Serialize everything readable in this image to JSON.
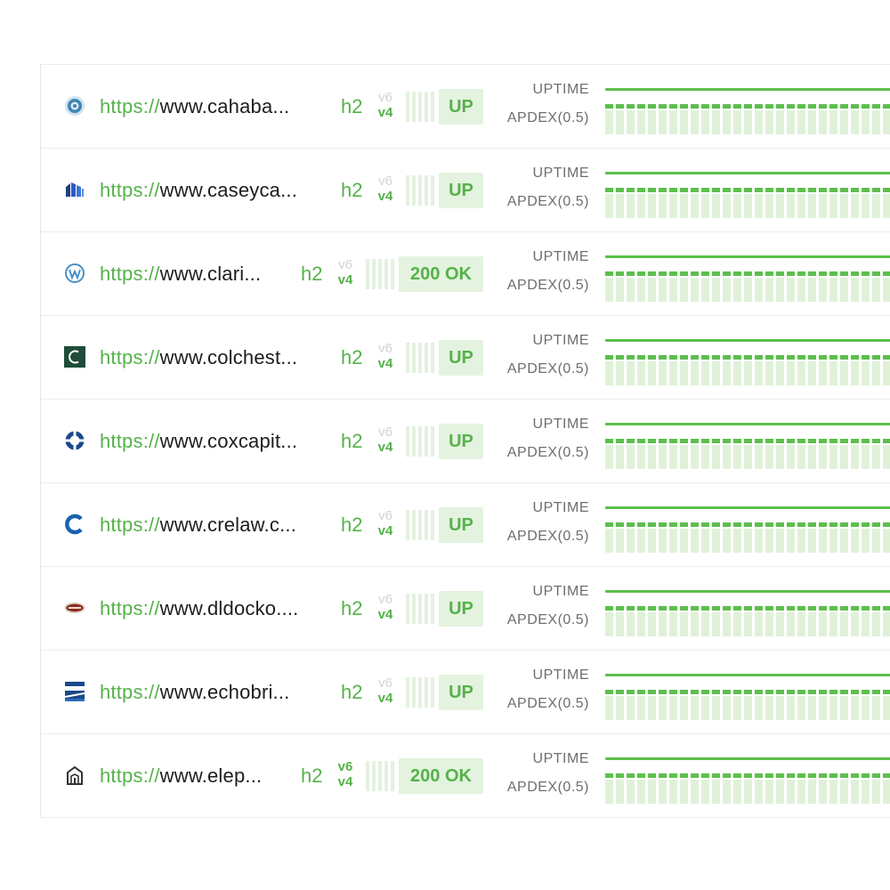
{
  "labels": {
    "uptime": "UPTIME",
    "apdex": "APDEX(0.5)"
  },
  "colors": {
    "accent": "#55b24a",
    "status_bg": "#e4f3df",
    "uptime_line": "#5cbf4c"
  },
  "monitors": [
    {
      "icon": "cahaba-logo-icon",
      "scheme": "https://",
      "host": "www.cahaba...",
      "protocol": "h2",
      "v6": "v6",
      "v4": "v4",
      "v6_active": false,
      "status": "UP"
    },
    {
      "icon": "caseyca-logo-icon",
      "scheme": "https://",
      "host": "www.caseyca...",
      "protocol": "h2",
      "v6": "v6",
      "v4": "v4",
      "v6_active": false,
      "status": "UP"
    },
    {
      "icon": "clari-logo-icon",
      "scheme": "https://",
      "host": "www.clari...",
      "protocol": "h2",
      "v6": "v6",
      "v4": "v4",
      "v6_active": false,
      "status": "200 OK"
    },
    {
      "icon": "colchest-logo-icon",
      "scheme": "https://",
      "host": "www.colchest...",
      "protocol": "h2",
      "v6": "v6",
      "v4": "v4",
      "v6_active": false,
      "status": "UP"
    },
    {
      "icon": "coxcapit-logo-icon",
      "scheme": "https://",
      "host": "www.coxcapit...",
      "protocol": "h2",
      "v6": "v6",
      "v4": "v4",
      "v6_active": false,
      "status": "UP"
    },
    {
      "icon": "crelaw-logo-icon",
      "scheme": "https://",
      "host": "www.crelaw.c...",
      "protocol": "h2",
      "v6": "v6",
      "v4": "v4",
      "v6_active": false,
      "status": "UP"
    },
    {
      "icon": "dldocko-logo-icon",
      "scheme": "https://",
      "host": "www.dldocko....",
      "protocol": "h2",
      "v6": "v6",
      "v4": "v4",
      "v6_active": false,
      "status": "UP"
    },
    {
      "icon": "echobri-logo-icon",
      "scheme": "https://",
      "host": "www.echobri...",
      "protocol": "h2",
      "v6": "v6",
      "v4": "v4",
      "v6_active": false,
      "status": "UP"
    },
    {
      "icon": "elep-logo-icon",
      "scheme": "https://",
      "host": "www.elep...",
      "protocol": "h2",
      "v6": "v6",
      "v4": "v4",
      "v6_active": true,
      "status": "200 OK"
    }
  ]
}
